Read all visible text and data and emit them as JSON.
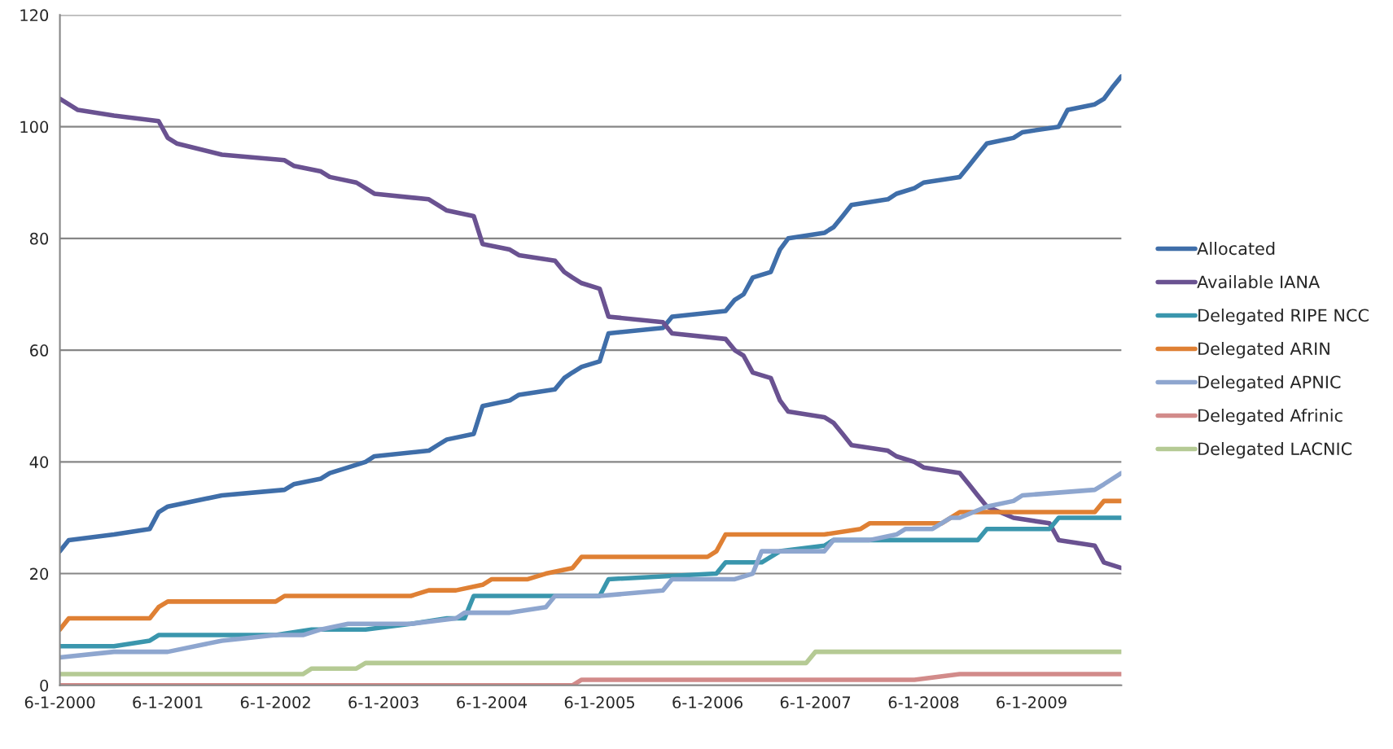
{
  "chart_data": {
    "type": "line",
    "xlim": [
      "2000-06-01",
      "2010-04-01"
    ],
    "xticks": [
      {
        "value": "2000-06-01",
        "label": "6-1-2000"
      },
      {
        "value": "2001-06-01",
        "label": "6-1-2001"
      },
      {
        "value": "2002-06-01",
        "label": "6-1-2002"
      },
      {
        "value": "2003-06-01",
        "label": "6-1-2003"
      },
      {
        "value": "2004-06-01",
        "label": "6-1-2004"
      },
      {
        "value": "2005-06-01",
        "label": "6-1-2005"
      },
      {
        "value": "2006-06-01",
        "label": "6-1-2006"
      },
      {
        "value": "2007-06-01",
        "label": "6-1-2007"
      },
      {
        "value": "2008-06-01",
        "label": "6-1-2008"
      },
      {
        "value": "2009-06-01",
        "label": "6-1-2009"
      }
    ],
    "ylim": [
      0,
      120
    ],
    "yticks": [
      0,
      20,
      40,
      60,
      80,
      100,
      120
    ],
    "grid": "y",
    "legend": "right",
    "marker": "none",
    "line_style": "solid",
    "series": [
      {
        "name": "Allocated",
        "color": "#3f6ea9",
        "x": [
          "2000-06",
          "2000-07",
          "2000-12",
          "2001-04",
          "2001-05",
          "2001-06",
          "2001-12",
          "2002-07",
          "2002-08",
          "2002-11",
          "2002-12",
          "2003-02",
          "2003-04",
          "2003-05",
          "2003-11",
          "2003-12",
          "2004-01",
          "2004-04",
          "2004-05",
          "2004-08",
          "2004-09",
          "2005-01",
          "2005-02",
          "2005-03",
          "2005-04",
          "2005-06",
          "2005-07",
          "2006-01",
          "2006-02",
          "2006-08",
          "2006-09",
          "2006-10",
          "2006-11",
          "2007-01",
          "2007-02",
          "2007-03",
          "2007-07",
          "2007-08",
          "2007-09",
          "2007-10",
          "2008-02",
          "2008-03",
          "2008-05",
          "2008-06",
          "2008-10",
          "2008-11",
          "2008-12",
          "2009-01",
          "2009-04",
          "2009-05",
          "2009-09",
          "2009-10",
          "2010-01",
          "2010-02",
          "2010-03",
          "2010-04"
        ],
        "values": [
          24,
          26,
          27,
          28,
          31,
          32,
          34,
          35,
          36,
          37,
          38,
          39,
          40,
          41,
          42,
          43,
          44,
          45,
          50,
          51,
          52,
          53,
          55,
          56,
          57,
          58,
          63,
          64,
          66,
          67,
          69,
          70,
          73,
          74,
          78,
          80,
          81,
          82,
          84,
          86,
          87,
          88,
          89,
          90,
          91,
          93,
          95,
          97,
          98,
          99,
          100,
          103,
          104,
          105,
          107,
          109
        ]
      },
      {
        "name": "Available IANA",
        "color": "#6a5291",
        "x": [
          "2000-06",
          "2000-07",
          "2000-08",
          "2000-12",
          "2001-05",
          "2001-06",
          "2001-07",
          "2001-12",
          "2002-07",
          "2002-08",
          "2002-11",
          "2002-12",
          "2003-03",
          "2003-04",
          "2003-05",
          "2003-11",
          "2003-12",
          "2004-01",
          "2004-04",
          "2004-05",
          "2004-08",
          "2004-09",
          "2005-01",
          "2005-02",
          "2005-03",
          "2005-04",
          "2005-06",
          "2005-07",
          "2006-01",
          "2006-02",
          "2006-08",
          "2006-09",
          "2006-10",
          "2006-11",
          "2007-01",
          "2007-02",
          "2007-03",
          "2007-07",
          "2007-08",
          "2007-09",
          "2007-10",
          "2008-02",
          "2008-03",
          "2008-05",
          "2008-06",
          "2008-10",
          "2008-11",
          "2008-12",
          "2009-01",
          "2009-04",
          "2009-08",
          "2009-09",
          "2010-01",
          "2010-02",
          "2010-04"
        ],
        "values": [
          105,
          104,
          103,
          102,
          101,
          98,
          97,
          95,
          94,
          93,
          92,
          91,
          90,
          89,
          88,
          87,
          86,
          85,
          84,
          79,
          78,
          77,
          76,
          74,
          73,
          72,
          71,
          66,
          65,
          63,
          62,
          60,
          59,
          56,
          55,
          51,
          49,
          48,
          47,
          45,
          43,
          42,
          41,
          40,
          39,
          38,
          36,
          34,
          32,
          30,
          29,
          26,
          25,
          22,
          21
        ]
      },
      {
        "name": "Delegated RIPE NCC",
        "color": "#3a96ad",
        "x": [
          "2000-06",
          "2000-12",
          "2001-04",
          "2001-05",
          "2002-06",
          "2002-10",
          "2003-04",
          "2003-09",
          "2004-01",
          "2004-03",
          "2004-04",
          "2005-06",
          "2005-07",
          "2006-07",
          "2006-08",
          "2006-12",
          "2007-02",
          "2007-07",
          "2007-08",
          "2008-12",
          "2009-01",
          "2009-08",
          "2009-09",
          "2010-04"
        ],
        "values": [
          7,
          7,
          8,
          9,
          9,
          10,
          10,
          11,
          12,
          12,
          16,
          16,
          19,
          20,
          22,
          22,
          24,
          25,
          26,
          26,
          28,
          28,
          30,
          30
        ]
      },
      {
        "name": "Delegated ARIN",
        "color": "#df8034",
        "x": [
          "2000-06",
          "2000-07",
          "2001-04",
          "2001-05",
          "2001-06",
          "2002-06",
          "2002-07",
          "2003-09",
          "2003-11",
          "2004-02",
          "2004-05",
          "2004-06",
          "2004-10",
          "2004-12",
          "2005-03",
          "2005-04",
          "2006-06",
          "2006-07",
          "2006-08",
          "2007-07",
          "2007-11",
          "2007-12",
          "2008-08",
          "2008-10",
          "2010-01",
          "2010-02",
          "2010-04"
        ],
        "values": [
          10,
          12,
          12,
          14,
          15,
          15,
          16,
          16,
          17,
          17,
          18,
          19,
          19,
          20,
          21,
          23,
          23,
          24,
          27,
          27,
          28,
          29,
          29,
          31,
          31,
          33,
          33
        ]
      },
      {
        "name": "Delegated APNIC",
        "color": "#8ea6cf",
        "x": [
          "2000-06",
          "2000-12",
          "2001-06",
          "2001-12",
          "2002-06",
          "2002-09",
          "2002-11",
          "2003-02",
          "2003-09",
          "2004-02",
          "2004-03",
          "2004-08",
          "2004-12",
          "2005-01",
          "2005-06",
          "2006-01",
          "2006-02",
          "2006-09",
          "2006-11",
          "2006-12",
          "2007-07",
          "2007-08",
          "2007-12",
          "2008-03",
          "2008-04",
          "2008-07",
          "2008-09",
          "2008-10",
          "2009-01",
          "2009-04",
          "2009-05",
          "2010-01",
          "2010-02",
          "2010-04"
        ],
        "values": [
          5,
          6,
          6,
          8,
          9,
          9,
          10,
          11,
          11,
          12,
          13,
          13,
          14,
          16,
          16,
          17,
          19,
          19,
          20,
          24,
          24,
          26,
          26,
          27,
          28,
          28,
          30,
          30,
          32,
          33,
          34,
          35,
          36,
          38
        ]
      },
      {
        "name": "Delegated Afrinic",
        "color": "#d28b8a",
        "x": [
          "2000-06",
          "2005-03",
          "2005-04",
          "2008-05",
          "2008-10",
          "2010-04"
        ],
        "values": [
          0,
          0,
          1,
          1,
          2,
          2
        ]
      },
      {
        "name": "Delegated LACNIC",
        "color": "#b5ca94",
        "x": [
          "2000-06",
          "2002-09",
          "2002-10",
          "2003-03",
          "2003-04",
          "2007-05",
          "2007-06",
          "2010-04"
        ],
        "values": [
          2,
          2,
          3,
          3,
          4,
          4,
          6,
          6
        ]
      }
    ]
  }
}
